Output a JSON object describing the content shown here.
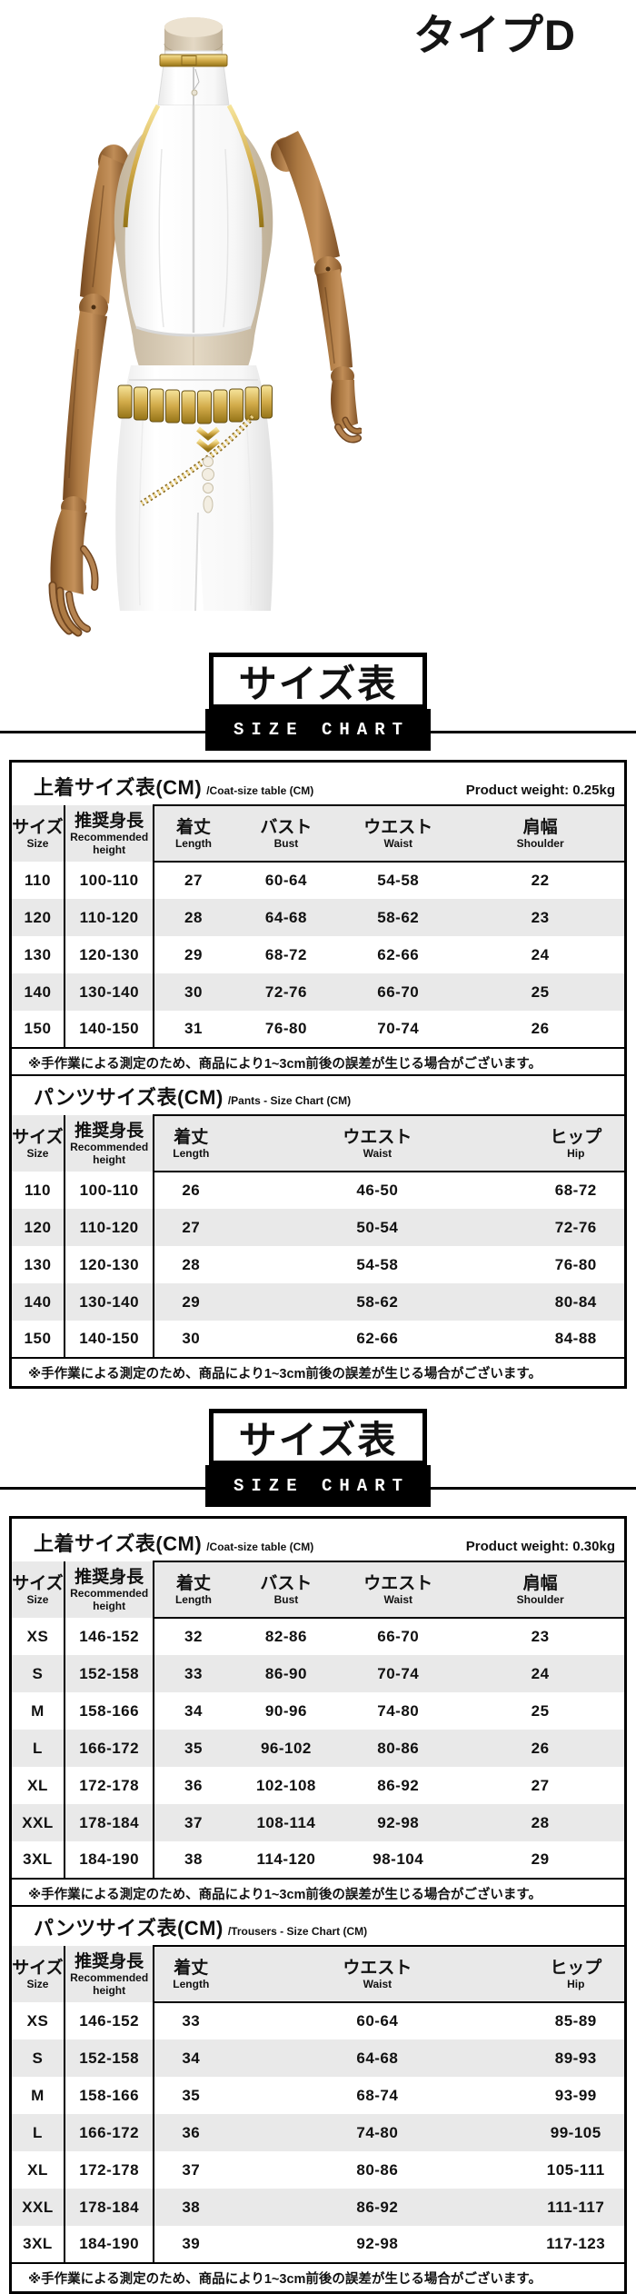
{
  "product": {
    "type_label": "タイプD",
    "photo": "white-crop-top-and-shorts-costume-on-wooden-mannequin",
    "accent_gold": "#d2ab4a",
    "zebra_gray": "#e9e9e9"
  },
  "banner": {
    "title_jp": "サイズ表",
    "title_en": "SIZE CHART"
  },
  "note": "※手作業による測定のため、商品により1~3cm前後の誤差が生じる場合がございます。",
  "sections": [
    {
      "coat": {
        "title_jp": "上着サイズ表(CM)",
        "title_en": "/Coat-size table (CM)",
        "weight": "Product weight: 0.25kg",
        "headers": [
          {
            "jp": "サイズ",
            "en": "Size"
          },
          {
            "jp": "推奨身長",
            "en": "Recommended height"
          },
          {
            "jp": "着丈",
            "en": "Length"
          },
          {
            "jp": "バスト",
            "en": "Bust"
          },
          {
            "jp": "ウエスト",
            "en": "Waist"
          },
          {
            "jp": "肩幅",
            "en": "Shoulder"
          }
        ],
        "rows": [
          [
            "110",
            "100-110",
            "27",
            "60-64",
            "54-58",
            "22"
          ],
          [
            "120",
            "110-120",
            "28",
            "64-68",
            "58-62",
            "23"
          ],
          [
            "130",
            "120-130",
            "29",
            "68-72",
            "62-66",
            "24"
          ],
          [
            "140",
            "130-140",
            "30",
            "72-76",
            "66-70",
            "25"
          ],
          [
            "150",
            "140-150",
            "31",
            "76-80",
            "70-74",
            "26"
          ]
        ]
      },
      "pants": {
        "title_jp": "パンツサイズ表(CM)",
        "title_en": "/Pants - Size Chart (CM)",
        "headers": [
          {
            "jp": "サイズ",
            "en": "Size"
          },
          {
            "jp": "推奨身長",
            "en": "Recommended height"
          },
          {
            "jp": "着丈",
            "en": "Length"
          },
          {
            "jp": "ウエスト",
            "en": "Waist"
          },
          {
            "jp": "ヒップ",
            "en": "Hip"
          }
        ],
        "rows": [
          [
            "110",
            "100-110",
            "26",
            "46-50",
            "68-72"
          ],
          [
            "120",
            "110-120",
            "27",
            "50-54",
            "72-76"
          ],
          [
            "130",
            "120-130",
            "28",
            "54-58",
            "76-80"
          ],
          [
            "140",
            "130-140",
            "29",
            "58-62",
            "80-84"
          ],
          [
            "150",
            "140-150",
            "30",
            "62-66",
            "84-88"
          ]
        ]
      }
    },
    {
      "coat": {
        "title_jp": "上着サイズ表(CM)",
        "title_en": "/Coat-size table (CM)",
        "weight": "Product weight: 0.30kg",
        "headers": [
          {
            "jp": "サイズ",
            "en": "Size"
          },
          {
            "jp": "推奨身長",
            "en": "Recommended height"
          },
          {
            "jp": "着丈",
            "en": "Length"
          },
          {
            "jp": "バスト",
            "en": "Bust"
          },
          {
            "jp": "ウエスト",
            "en": "Waist"
          },
          {
            "jp": "肩幅",
            "en": "Shoulder"
          }
        ],
        "rows": [
          [
            "XS",
            "146-152",
            "32",
            "82-86",
            "66-70",
            "23"
          ],
          [
            "S",
            "152-158",
            "33",
            "86-90",
            "70-74",
            "24"
          ],
          [
            "M",
            "158-166",
            "34",
            "90-96",
            "74-80",
            "25"
          ],
          [
            "L",
            "166-172",
            "35",
            "96-102",
            "80-86",
            "26"
          ],
          [
            "XL",
            "172-178",
            "36",
            "102-108",
            "86-92",
            "27"
          ],
          [
            "XXL",
            "178-184",
            "37",
            "108-114",
            "92-98",
            "28"
          ],
          [
            "3XL",
            "184-190",
            "38",
            "114-120",
            "98-104",
            "29"
          ]
        ]
      },
      "pants": {
        "title_jp": "パンツサイズ表(CM)",
        "title_en": "/Trousers - Size Chart (CM)",
        "headers": [
          {
            "jp": "サイズ",
            "en": "Size"
          },
          {
            "jp": "推奨身長",
            "en": "Recommended height"
          },
          {
            "jp": "着丈",
            "en": "Length"
          },
          {
            "jp": "ウエスト",
            "en": "Waist"
          },
          {
            "jp": "ヒップ",
            "en": "Hip"
          }
        ],
        "rows": [
          [
            "XS",
            "146-152",
            "33",
            "60-64",
            "85-89"
          ],
          [
            "S",
            "152-158",
            "34",
            "64-68",
            "89-93"
          ],
          [
            "M",
            "158-166",
            "35",
            "68-74",
            "93-99"
          ],
          [
            "L",
            "166-172",
            "36",
            "74-80",
            "99-105"
          ],
          [
            "XL",
            "172-178",
            "37",
            "80-86",
            "105-111"
          ],
          [
            "XXL",
            "178-184",
            "38",
            "86-92",
            "111-117"
          ],
          [
            "3XL",
            "184-190",
            "39",
            "92-98",
            "117-123"
          ]
        ]
      }
    }
  ]
}
